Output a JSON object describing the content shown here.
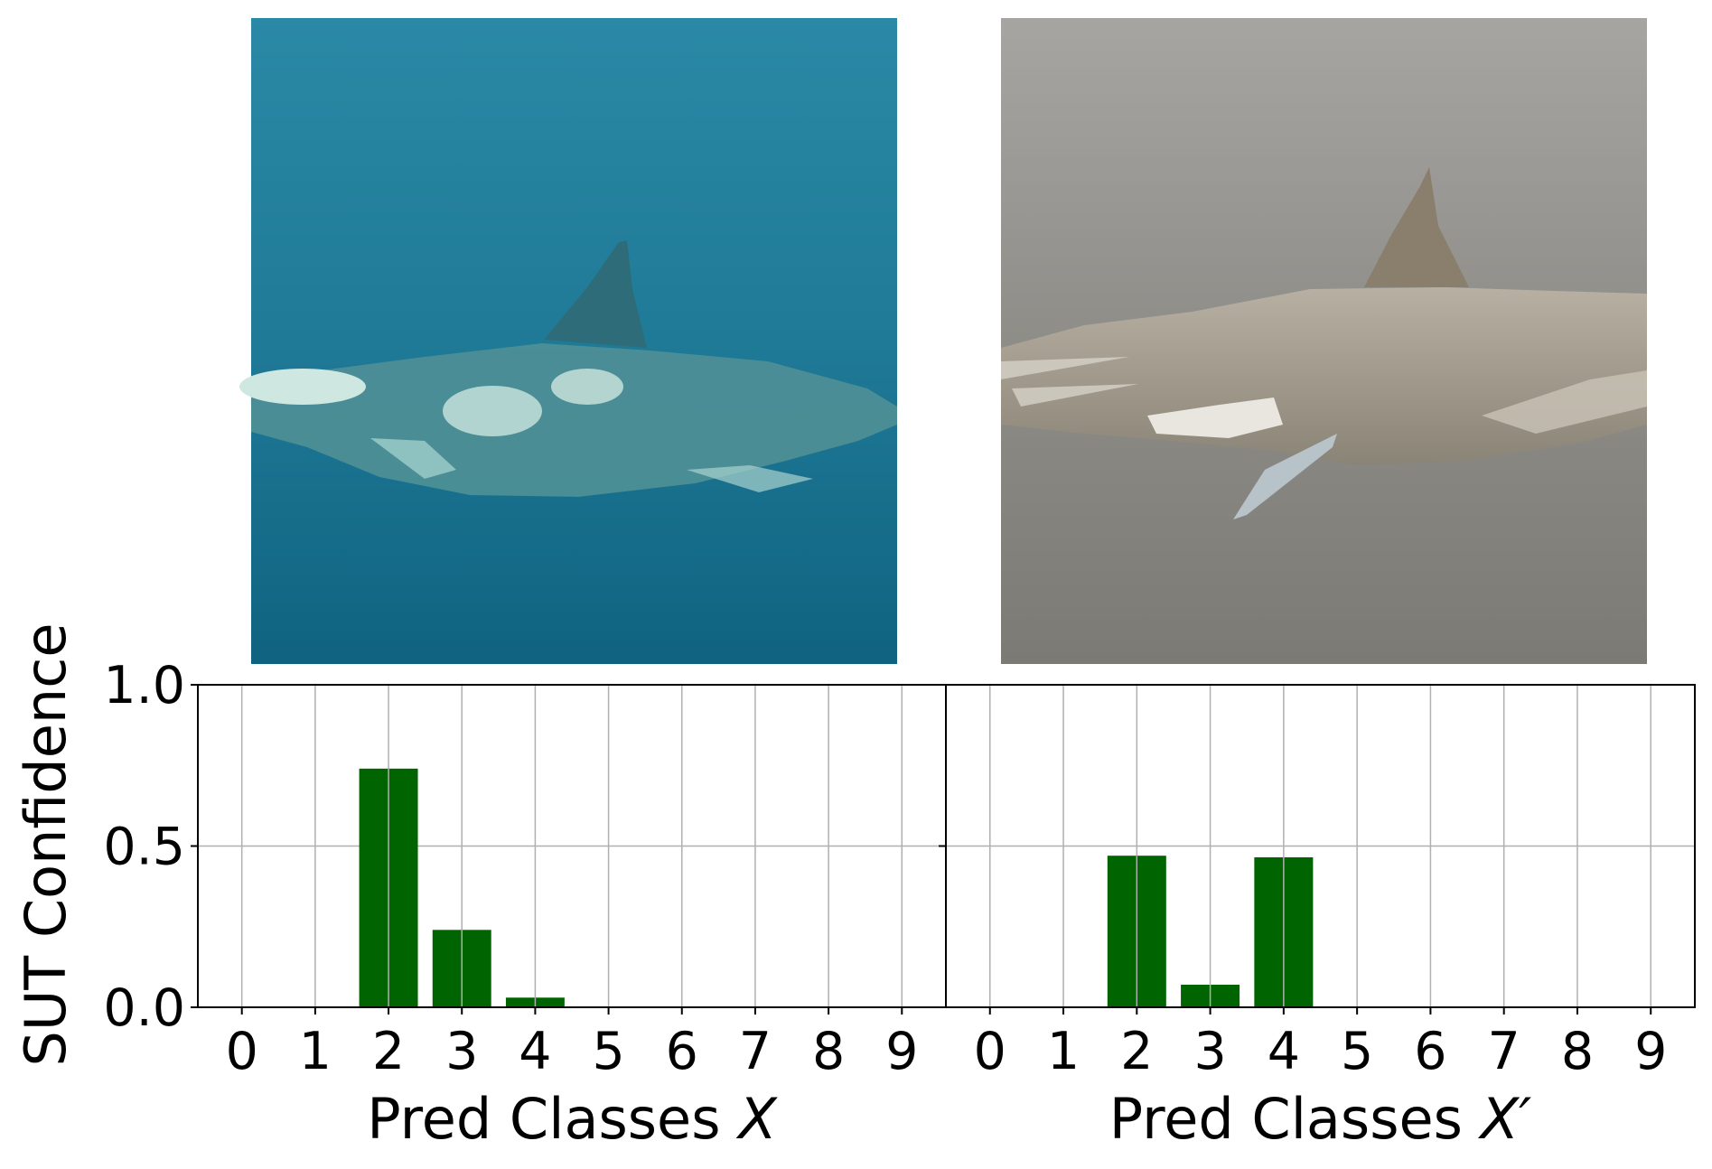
{
  "chart_data": [
    {
      "type": "bar",
      "panel": "left",
      "image": "underwater-shark-photo",
      "xlabel_prefix": "Pred Classes ",
      "xlabel_var": "X",
      "ylabel": "SUT Confidence",
      "categories": [
        "0",
        "1",
        "2",
        "3",
        "4",
        "5",
        "6",
        "7",
        "8",
        "9"
      ],
      "values": [
        0,
        0,
        0.74,
        0.24,
        0.03,
        0,
        0,
        0,
        0,
        0
      ],
      "ylim": [
        0,
        1.0
      ],
      "yticks": [
        "0.0",
        "0.5",
        "1.0"
      ],
      "grid": true,
      "bar_color": "#006400"
    },
    {
      "type": "bar",
      "panel": "right",
      "image": "transformed-shark-photo",
      "xlabel_prefix": "Pred Classes ",
      "xlabel_var": "X′",
      "categories": [
        "0",
        "1",
        "2",
        "3",
        "4",
        "5",
        "6",
        "7",
        "8",
        "9"
      ],
      "values": [
        0,
        0,
        0.47,
        0.07,
        0.465,
        0,
        0,
        0,
        0,
        0
      ],
      "ylim": [
        0,
        1.0
      ],
      "grid": true,
      "bar_color": "#006400"
    }
  ]
}
